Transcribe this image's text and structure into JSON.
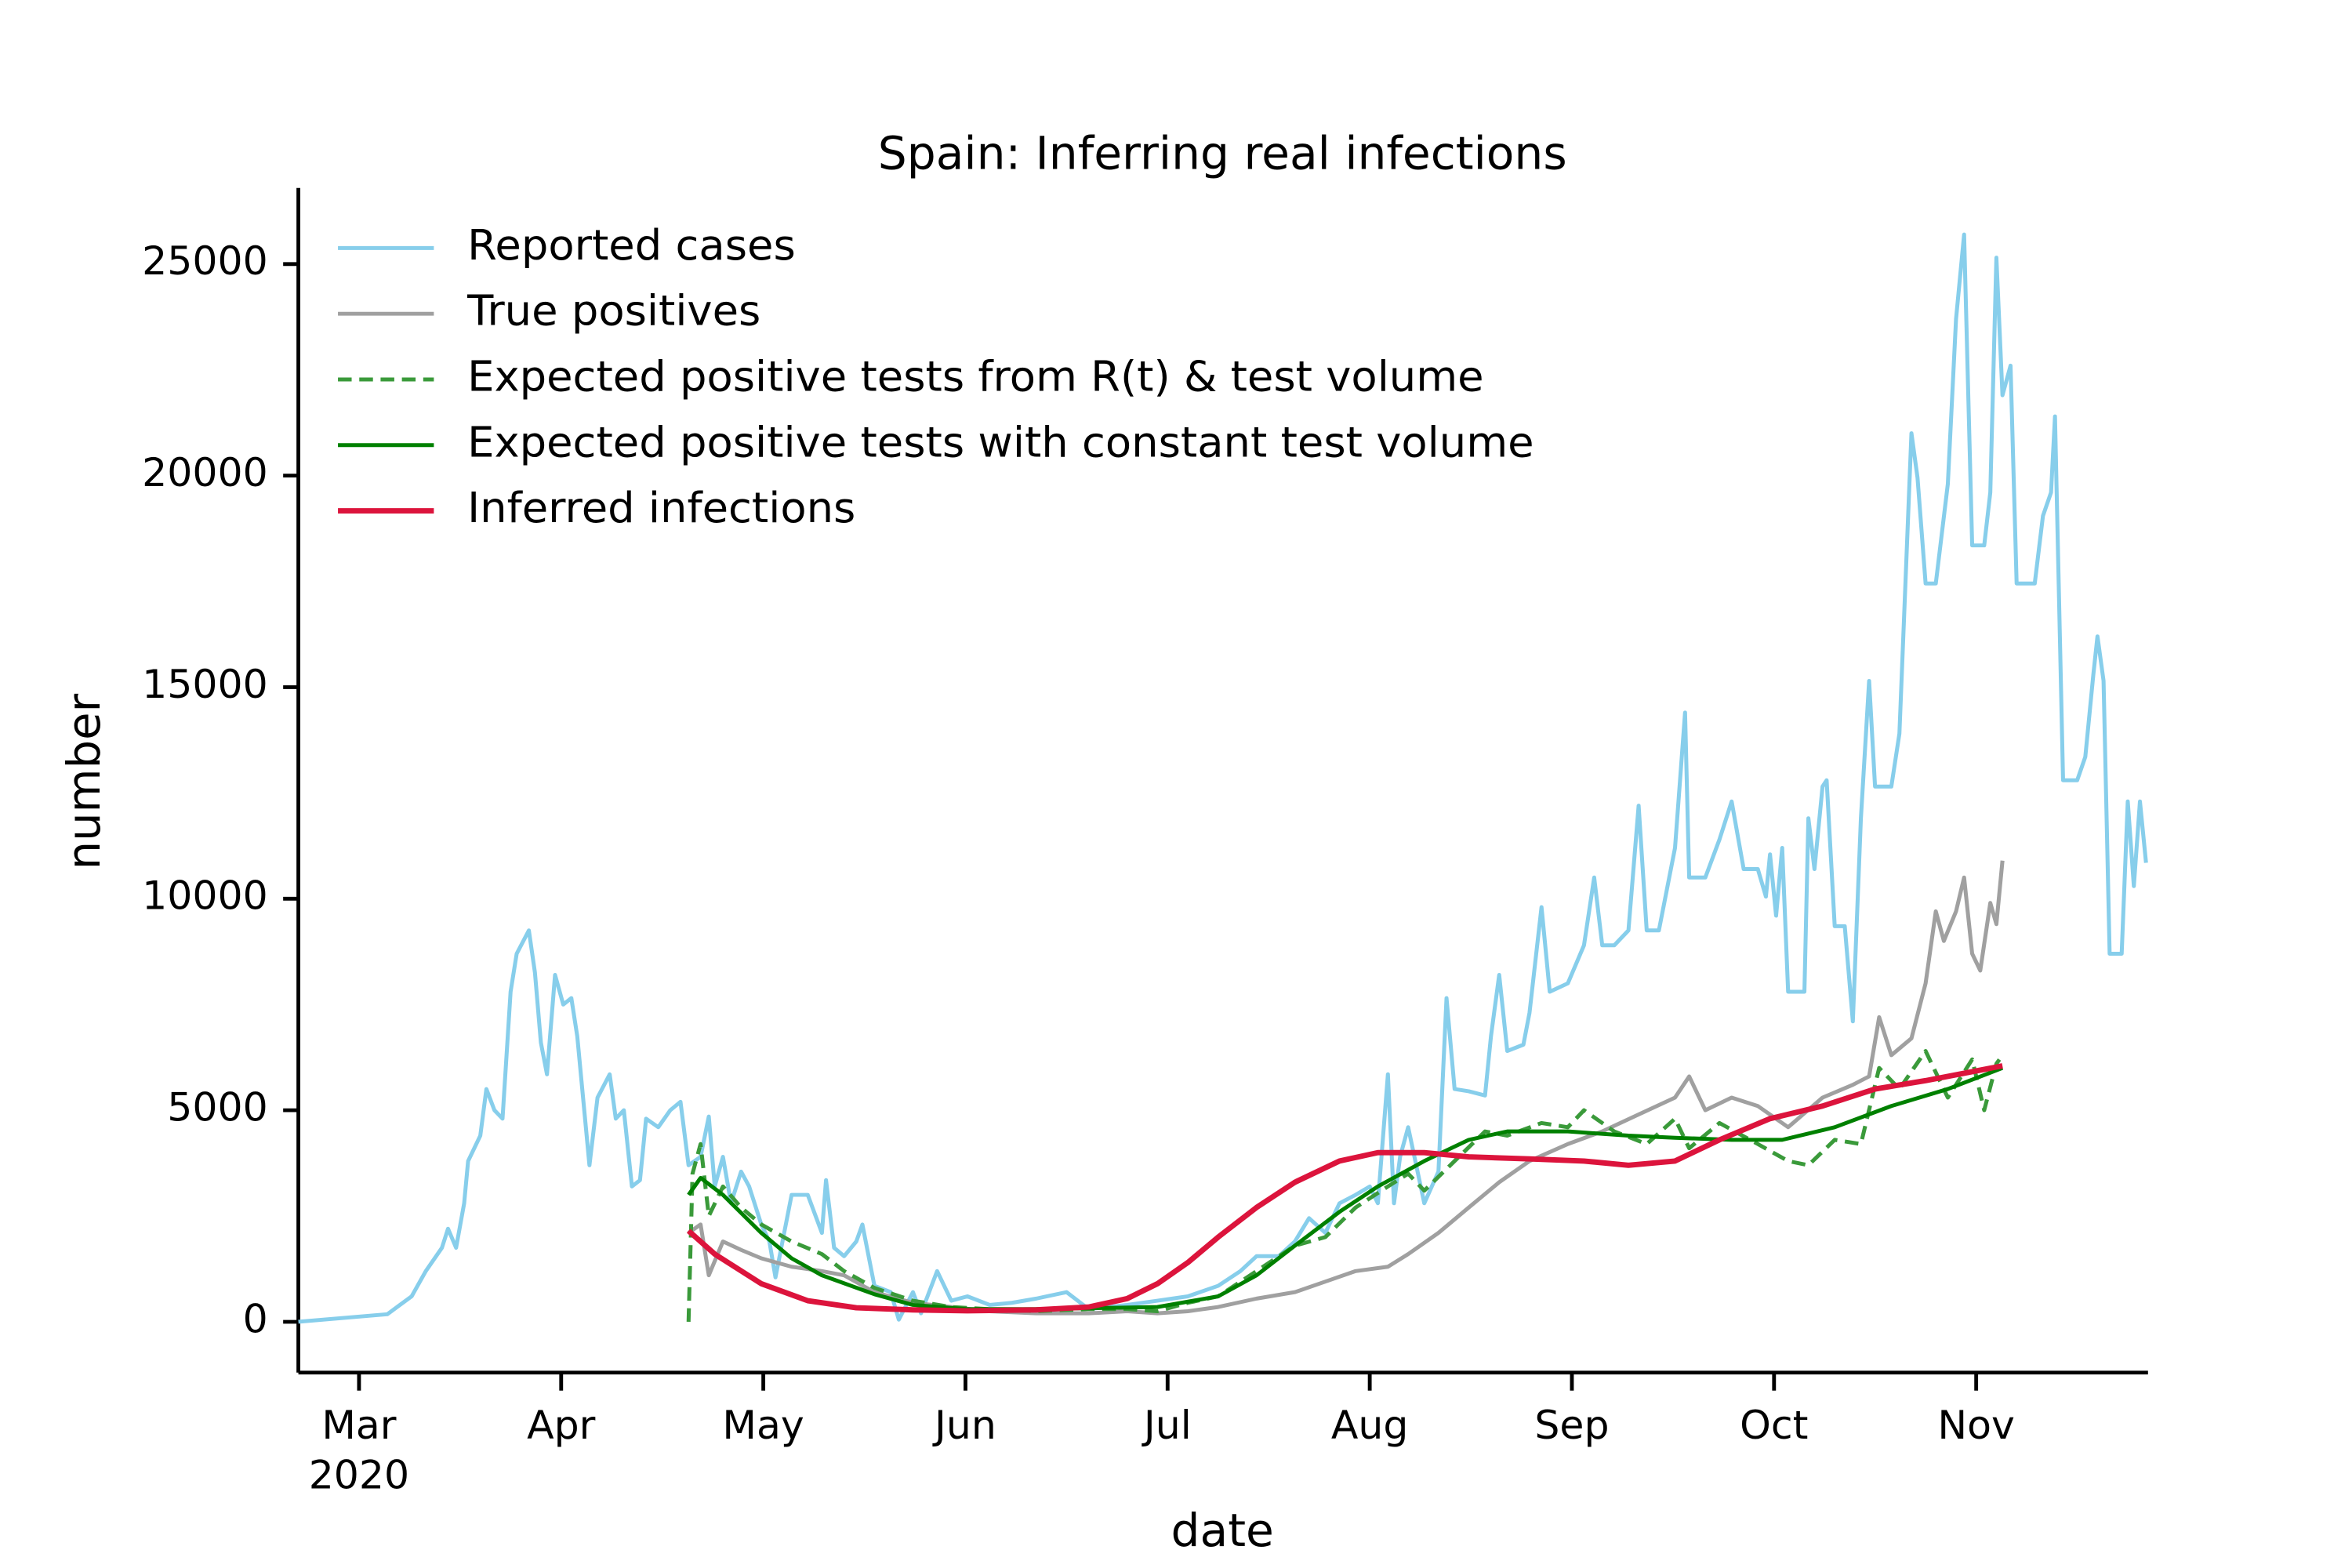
{
  "chart_data": {
    "type": "line",
    "title": "Spain: Inferring real infections",
    "xlabel": "date",
    "ylabel": "number",
    "xaxis_year_label": "2020",
    "xlim": [
      2.7,
      11.85
    ],
    "ylim": [
      -1200,
      26800
    ],
    "xticks": [
      {
        "value": 3,
        "label": "Mar"
      },
      {
        "value": 4,
        "label": "Apr"
      },
      {
        "value": 5,
        "label": "May"
      },
      {
        "value": 6,
        "label": "Jun"
      },
      {
        "value": 7,
        "label": "Jul"
      },
      {
        "value": 8,
        "label": "Aug"
      },
      {
        "value": 9,
        "label": "Sep"
      },
      {
        "value": 10,
        "label": "Oct"
      },
      {
        "value": 11,
        "label": "Nov"
      }
    ],
    "yticks": [
      0,
      5000,
      10000,
      15000,
      20000,
      25000
    ],
    "grid": false,
    "legend_position": "upper left",
    "series": [
      {
        "name": "Reported cases",
        "color": "#87ceeb",
        "style": "solid",
        "width": 2.6,
        "x": [
          2.7,
          3.14,
          3.26,
          3.33,
          3.41,
          3.44,
          3.48,
          3.52,
          3.54,
          3.6,
          3.63,
          3.67,
          3.71,
          3.75,
          3.78,
          3.84,
          3.87,
          3.9,
          3.93,
          3.97,
          4.01,
          4.05,
          4.08,
          4.14,
          4.18,
          4.24,
          4.27,
          4.31,
          4.35,
          4.39,
          4.42,
          4.48,
          4.54,
          4.59,
          4.63,
          4.69,
          4.73,
          4.76,
          4.8,
          4.84,
          4.89,
          4.93,
          4.99,
          5.03,
          5.06,
          5.14,
          5.22,
          5.29,
          5.31,
          5.35,
          5.4,
          5.46,
          5.49,
          5.55,
          5.63,
          5.67,
          5.74,
          5.78,
          5.86,
          5.93,
          6.01,
          6.12,
          6.23,
          6.35,
          6.5,
          6.61,
          6.8,
          6.95,
          7.1,
          7.25,
          7.36,
          7.44,
          7.55,
          7.63,
          7.7,
          7.78,
          7.85,
          7.93,
          8.0,
          8.04,
          8.09,
          8.12,
          8.15,
          8.19,
          8.27,
          8.34,
          8.38,
          8.42,
          8.49,
          8.57,
          8.6,
          8.64,
          8.68,
          8.76,
          8.79,
          8.85,
          8.89,
          8.98,
          9.06,
          9.11,
          9.15,
          9.21,
          9.28,
          9.33,
          9.37,
          9.43,
          9.51,
          9.56,
          9.58,
          9.66,
          9.73,
          9.79,
          9.85,
          9.92,
          9.96,
          9.98,
          10.01,
          10.04,
          10.07,
          10.15,
          10.17,
          10.2,
          10.24,
          10.26,
          10.3,
          10.35,
          10.39,
          10.43,
          10.47,
          10.5,
          10.58,
          10.62,
          10.68,
          10.71,
          10.75,
          10.8,
          10.86,
          10.9,
          10.94,
          10.98,
          11.04,
          11.07,
          11.1,
          11.13,
          11.17,
          11.2,
          11.29,
          11.33,
          11.37,
          11.39,
          11.43,
          11.5,
          11.54,
          11.58,
          11.6,
          11.63,
          11.66,
          11.72,
          11.75,
          11.78,
          11.81,
          11.84
        ],
        "values": [
          0,
          180,
          600,
          1200,
          1750,
          2200,
          1750,
          2800,
          3800,
          4400,
          5500,
          5000,
          4800,
          7800,
          8700,
          9250,
          8250,
          6600,
          5850,
          8200,
          7500,
          7650,
          6750,
          3700,
          5300,
          5850,
          4800,
          5000,
          3200,
          3350,
          4800,
          4600,
          5000,
          5200,
          3700,
          3900,
          4850,
          3200,
          3900,
          2800,
          3550,
          3200,
          2300,
          1900,
          1050,
          3000,
          3000,
          2100,
          3350,
          1750,
          1550,
          1900,
          2300,
          850,
          700,
          50,
          700,
          200,
          1200,
          500,
          600,
          400,
          450,
          550,
          700,
          300,
          400,
          500,
          600,
          850,
          1200,
          1550,
          1550,
          1900,
          2450,
          2100,
          2800,
          3000,
          3200,
          2800,
          5850,
          2800,
          3900,
          4600,
          2800,
          3550,
          7650,
          5500,
          5450,
          5350,
          6750,
          8200,
          6400,
          6550,
          7300,
          9800,
          7800,
          8000,
          8900,
          10500,
          8900,
          8900,
          9250,
          12200,
          9250,
          9250,
          11200,
          14400,
          10500,
          10500,
          11400,
          12300,
          10700,
          10700,
          10050,
          11050,
          9600,
          11200,
          7800,
          7800,
          11900,
          10700,
          12650,
          12800,
          9350,
          9350,
          7100,
          11900,
          15150,
          12650,
          12650,
          13900,
          21000,
          19950,
          17450,
          17450,
          19800,
          23700,
          25700,
          18350,
          18350,
          19600,
          25150,
          21900,
          22600,
          17450,
          17450,
          19050,
          19600,
          21400,
          12800,
          12800,
          13350,
          15300,
          16200,
          15150,
          8700,
          8700,
          12300,
          10300,
          12300,
          10850
        ]
      },
      {
        "name": "True positives",
        "color": "#a0a0a0",
        "style": "solid",
        "width": 2.6,
        "x": [
          4.63,
          4.69,
          4.73,
          4.8,
          4.89,
          4.99,
          5.14,
          5.29,
          5.4,
          5.55,
          5.74,
          5.93,
          6.12,
          6.35,
          6.61,
          6.8,
          6.95,
          7.1,
          7.25,
          7.44,
          7.63,
          7.78,
          7.93,
          8.09,
          8.19,
          8.34,
          8.49,
          8.64,
          8.79,
          8.98,
          9.15,
          9.33,
          9.51,
          9.58,
          9.66,
          9.79,
          9.92,
          10.07,
          10.24,
          10.39,
          10.47,
          10.52,
          10.58,
          10.68,
          10.75,
          10.8,
          10.84,
          10.9,
          10.94,
          10.98,
          11.02,
          11.07,
          11.1,
          11.13
        ],
        "values": [
          2100,
          2300,
          1100,
          1900,
          1700,
          1500,
          1300,
          1200,
          1100,
          700,
          450,
          350,
          250,
          200,
          200,
          250,
          200,
          250,
          350,
          550,
          700,
          950,
          1200,
          1300,
          1600,
          2100,
          2700,
          3300,
          3800,
          4200,
          4500,
          4900,
          5300,
          5800,
          5000,
          5300,
          5100,
          4600,
          5300,
          5600,
          5800,
          7200,
          6300,
          6700,
          8000,
          9700,
          9000,
          9700,
          10500,
          8700,
          8300,
          9900,
          9400,
          10900
        ]
      },
      {
        "name": "Expected positive tests from R(t) & test volume",
        "color": "#3a9a3a",
        "style": "dashed",
        "width": 2.6,
        "x": [
          4.63,
          4.65,
          4.69,
          4.73,
          4.8,
          4.89,
          4.99,
          5.14,
          5.29,
          5.4,
          5.55,
          5.74,
          5.93,
          6.12,
          6.35,
          6.61,
          6.8,
          6.95,
          7.1,
          7.25,
          7.44,
          7.63,
          7.78,
          7.93,
          8.09,
          8.19,
          8.27,
          8.42,
          8.57,
          8.68,
          8.85,
          8.98,
          9.06,
          9.21,
          9.37,
          9.51,
          9.58,
          9.73,
          9.92,
          10.07,
          10.17,
          10.3,
          10.43,
          10.52,
          10.62,
          10.75,
          10.86,
          10.98,
          11.04,
          11.1,
          11.13
        ],
        "values": [
          0,
          3500,
          4200,
          2500,
          3200,
          2700,
          2300,
          1900,
          1600,
          1200,
          800,
          500,
          350,
          300,
          250,
          300,
          300,
          250,
          450,
          600,
          1200,
          1800,
          2000,
          2700,
          3200,
          3500,
          3100,
          3800,
          4500,
          4400,
          4700,
          4600,
          5000,
          4500,
          4200,
          4800,
          4100,
          4700,
          4200,
          3800,
          3700,
          4300,
          4200,
          6000,
          5500,
          6400,
          5300,
          6200,
          5000,
          6100,
          6300
        ]
      },
      {
        "name": "Expected positive tests with constant test volume",
        "color": "#008000",
        "style": "solid",
        "width": 2.6,
        "x": [
          4.63,
          4.69,
          4.8,
          4.99,
          5.14,
          5.29,
          5.55,
          5.74,
          6.01,
          6.35,
          6.61,
          6.95,
          7.25,
          7.44,
          7.63,
          7.85,
          8.04,
          8.27,
          8.49,
          8.68,
          8.98,
          9.28,
          9.51,
          9.79,
          10.04,
          10.3,
          10.58,
          10.86,
          11.13
        ],
        "values": [
          3000,
          3400,
          3000,
          2100,
          1500,
          1100,
          650,
          400,
          300,
          300,
          320,
          350,
          600,
          1100,
          1800,
          2600,
          3200,
          3800,
          4300,
          4500,
          4500,
          4400,
          4350,
          4300,
          4300,
          4600,
          5100,
          5500,
          6000
        ]
      },
      {
        "name": "Inferred infections",
        "color": "#dc143c",
        "style": "solid",
        "width": 3.6,
        "x": [
          4.63,
          4.76,
          4.99,
          5.22,
          5.46,
          5.74,
          6.01,
          6.35,
          6.61,
          6.8,
          6.95,
          7.1,
          7.25,
          7.44,
          7.63,
          7.85,
          8.04,
          8.27,
          8.49,
          8.79,
          9.06,
          9.28,
          9.51,
          9.73,
          9.98,
          10.24,
          10.5,
          10.75,
          11.13
        ],
        "values": [
          2150,
          1600,
          900,
          500,
          330,
          280,
          260,
          280,
          350,
          550,
          900,
          1400,
          2000,
          2700,
          3300,
          3800,
          4000,
          4000,
          3900,
          3850,
          3800,
          3700,
          3800,
          4300,
          4800,
          5100,
          5500,
          5700,
          6050
        ]
      }
    ]
  }
}
